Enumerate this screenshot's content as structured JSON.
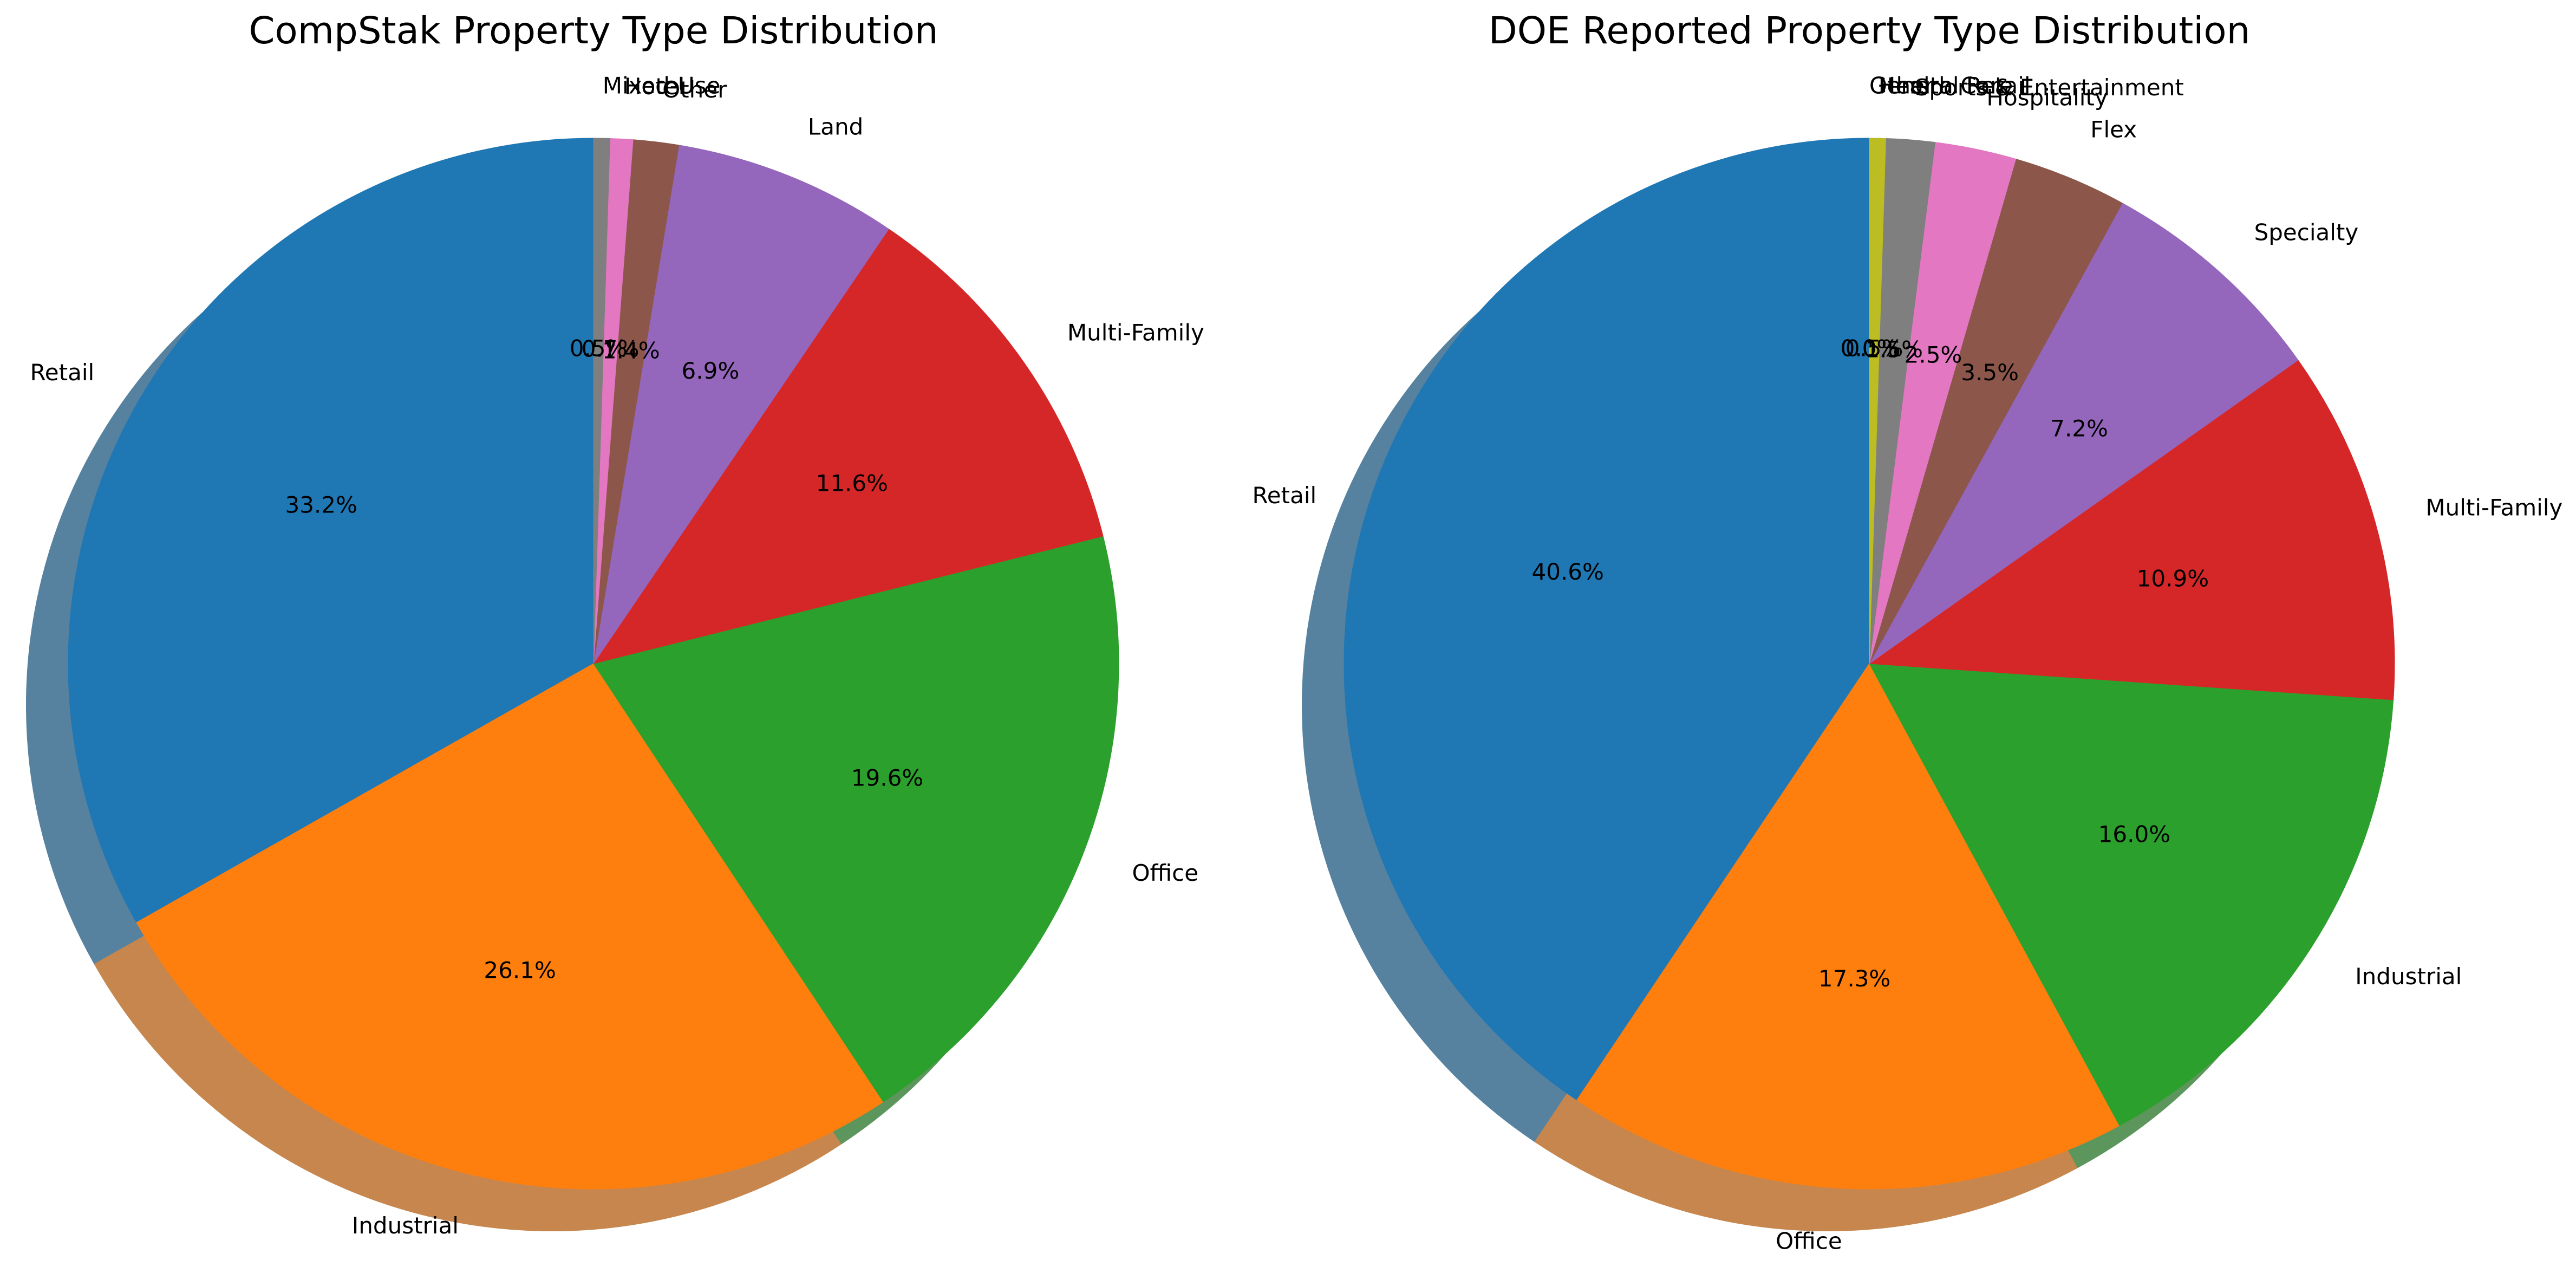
{
  "chart_data": [
    {
      "type": "pie",
      "title": "CompStak Property Type Distribution",
      "start_angle_deg": 90,
      "direction": "counterclockwise",
      "shadow": true,
      "slices": [
        {
          "label": "Retail",
          "value": 33.2,
          "pct_label": "33.2%",
          "color": "#1f77b4"
        },
        {
          "label": "Industrial",
          "value": 26.1,
          "pct_label": "26.1%",
          "color": "#ff7f0e"
        },
        {
          "label": "Office",
          "value": 19.6,
          "pct_label": "19.6%",
          "color": "#2ca02c"
        },
        {
          "label": "Multi-Family",
          "value": 11.6,
          "pct_label": "11.6%",
          "color": "#d62728"
        },
        {
          "label": "Land",
          "value": 6.9,
          "pct_label": "6.9%",
          "color": "#9467bd"
        },
        {
          "label": "Other",
          "value": 1.4,
          "pct_label": "1.4%",
          "color": "#8c564b"
        },
        {
          "label": "Hotel",
          "value": 0.7,
          "pct_label": "0.7%",
          "color": "#e377c2"
        },
        {
          "label": "Mixed-Use",
          "value": 0.5,
          "pct_label": "0.5%",
          "color": "#7f7f7f"
        }
      ]
    },
    {
      "type": "pie",
      "title": "DOE Reported Property Type Distribution",
      "start_angle_deg": 90,
      "direction": "counterclockwise",
      "shadow": true,
      "slices": [
        {
          "label": "Retail",
          "value": 40.6,
          "pct_label": "40.6%",
          "color": "#1f77b4"
        },
        {
          "label": "Office",
          "value": 17.3,
          "pct_label": "17.3%",
          "color": "#ff7f0e"
        },
        {
          "label": "Industrial",
          "value": 16.0,
          "pct_label": "16.0%",
          "color": "#2ca02c"
        },
        {
          "label": "Multi-Family",
          "value": 10.9,
          "pct_label": "10.9%",
          "color": "#d62728"
        },
        {
          "label": "Specialty",
          "value": 7.2,
          "pct_label": "7.2%",
          "color": "#9467bd"
        },
        {
          "label": "Flex",
          "value": 3.5,
          "pct_label": "3.5%",
          "color": "#8c564b"
        },
        {
          "label": "Hospitality",
          "value": 2.5,
          "pct_label": "2.5%",
          "color": "#e377c2"
        },
        {
          "label": "Sports & Entertainment",
          "value": 1.5,
          "pct_label": "1.5%",
          "color": "#7f7f7f"
        },
        {
          "label": "Health Care",
          "value": 0.5,
          "pct_label": "0.5%",
          "color": "#bcbd22"
        },
        {
          "label": "General Retail",
          "value": 0.0,
          "pct_label": "0.0%",
          "color": "#17becf"
        },
        {
          "label": "Other",
          "value": 0.0,
          "pct_label": "0.0%",
          "color": "#1f77b4"
        }
      ]
    }
  ]
}
